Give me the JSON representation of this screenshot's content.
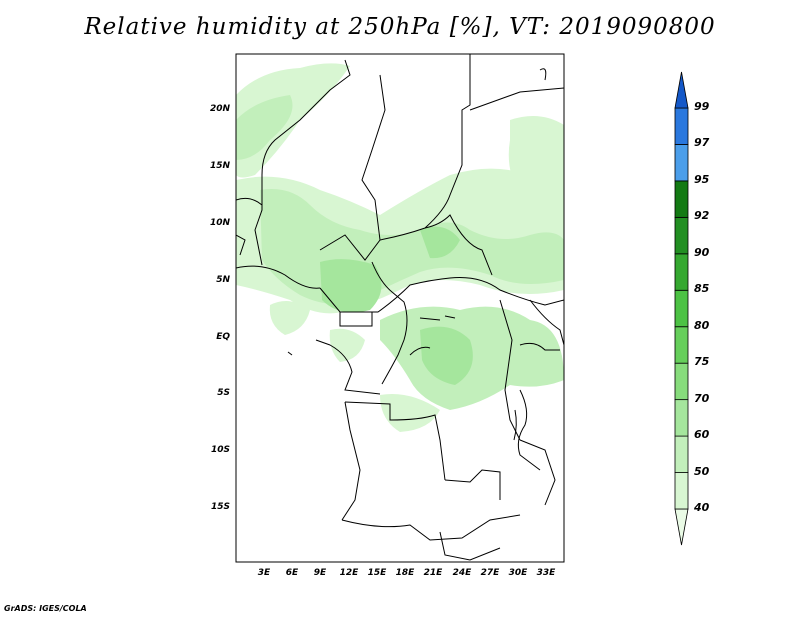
{
  "title": "Relative humidity at 250hPa [%], VT: 2019090800",
  "credit": "GrADS: IGES/COLA",
  "lat_ticks": [
    "20N",
    "15N",
    "10N",
    "5N",
    "EQ",
    "5S",
    "10S",
    "15S"
  ],
  "lon_ticks": [
    "3E",
    "6E",
    "9E",
    "12E",
    "15E",
    "18E",
    "21E",
    "24E",
    "27E",
    "30E",
    "33E"
  ],
  "colorbar": {
    "levels": [
      "40",
      "50",
      "60",
      "70",
      "75",
      "80",
      "85",
      "90",
      "92",
      "95",
      "97",
      "99"
    ],
    "colors": [
      "#eafbe6",
      "#d8f6d2",
      "#c2efbb",
      "#a5e69d",
      "#87dc7c",
      "#66cf5b",
      "#4cc244",
      "#35a830",
      "#228f22",
      "#137a13",
      "#4b9eea",
      "#2a78de",
      "#1458c8"
    ]
  }
}
